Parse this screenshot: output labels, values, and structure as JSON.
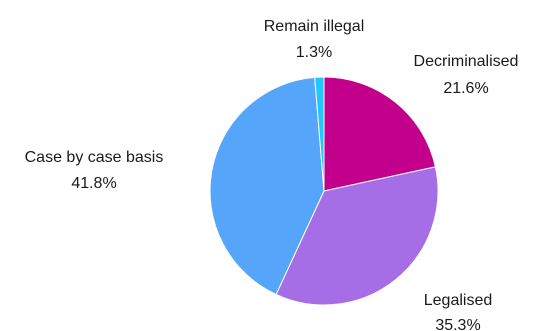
{
  "chart_data": {
    "type": "pie",
    "title": "",
    "legend": "none",
    "slices": [
      {
        "label": "Decriminalised",
        "value": 21.6,
        "value_label": "21.6%",
        "color": "#c2008c"
      },
      {
        "label": "Legalised",
        "value": 35.3,
        "value_label": "35.3%",
        "color": "#a66ee6"
      },
      {
        "label": "Case by case basis",
        "value": 41.8,
        "value_label": "41.8%",
        "color": "#55a6fa"
      },
      {
        "label": "Remain illegal",
        "value": 1.3,
        "value_label": "1.3%",
        "color": "#1ec8ff"
      }
    ]
  }
}
